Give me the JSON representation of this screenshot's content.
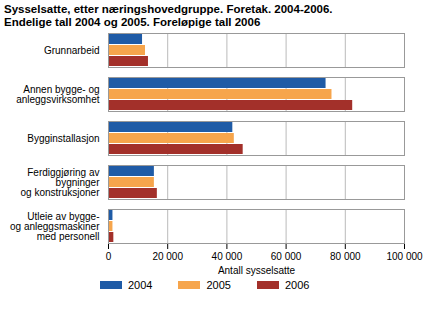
{
  "chart_data": {
    "type": "bar",
    "orientation": "horizontal",
    "title": "Sysselsatte, etter næringshovedgruppe. Foretak. 2004-2006.",
    "subtitle": "Endelige tall 2004 og 2005. Foreløpige tall 2006",
    "x_label": "Antall sysselsatte",
    "categories": [
      "Grunnarbeid",
      "Annen bygge- og\nanleggsvirksomhet",
      "Bygginstallasjon",
      "Ferdiggjøring av\nbygninger\nog konstruksjoner",
      "Utleie av bygge-\nog anleggsmaskiner\nmed personell"
    ],
    "series": [
      {
        "name": "2004",
        "color": "#1f5ba6",
        "values": [
          11500,
          73500,
          42000,
          15500,
          1500
        ]
      },
      {
        "name": "2005",
        "color": "#f6a54c",
        "values": [
          12500,
          75500,
          42500,
          15500,
          1500
        ]
      },
      {
        "name": "2006",
        "color": "#a3302a",
        "values": [
          13500,
          82500,
          45500,
          16500,
          1800
        ]
      }
    ],
    "xlim": [
      0,
      100000
    ],
    "xticks": [
      0,
      {
        "value": 20000,
        "label": "20 000"
      },
      {
        "value": 40000,
        "label": "40 000"
      },
      {
        "value": 60000,
        "label": "60 000"
      },
      {
        "value": 80000,
        "label": "80 000"
      },
      {
        "value": 100000,
        "label": "100 000"
      }
    ],
    "grid": true,
    "legend": "bottom"
  }
}
